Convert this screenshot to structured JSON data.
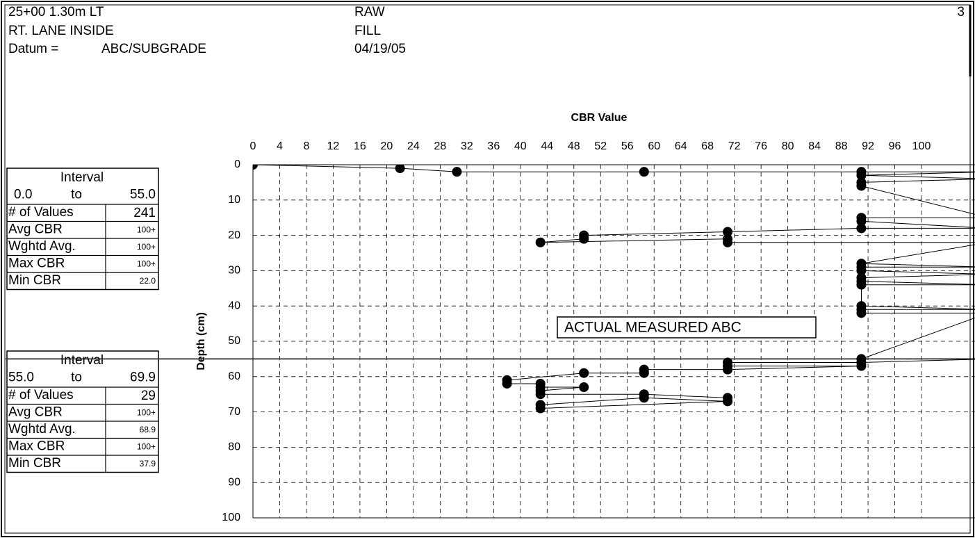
{
  "header": {
    "left": [
      "25+00 1.30m LT",
      "RT. LANE INSIDE"
    ],
    "datum_label": "Datum =",
    "datum_value": "ABC/SUBGRADE",
    "right": [
      "RAW",
      "FILL",
      "04/19/05"
    ],
    "page": "3"
  },
  "tables": [
    {
      "title": "Interval",
      "from": "0.0",
      "to": "to",
      "until": "55.0",
      "rows": [
        [
          "# of Values",
          "241"
        ],
        [
          "Avg CBR",
          "100+"
        ],
        [
          "Wghtd Avg.",
          "100+"
        ],
        [
          "Max CBR",
          "100+"
        ],
        [
          "Min CBR",
          "22.0"
        ]
      ]
    },
    {
      "title": "Interval",
      "from": "55.0",
      "to": "to",
      "until": "69.9",
      "rows": [
        [
          "# of Values",
          "29"
        ],
        [
          "Avg CBR",
          "100+"
        ],
        [
          "Wghtd Avg.",
          "68.9"
        ],
        [
          "Max CBR",
          "100+"
        ],
        [
          "Min CBR",
          "37.9"
        ]
      ]
    }
  ],
  "chart_data": {
    "type": "line",
    "x_label": "CBR Value",
    "y_label": "Depth (cm)",
    "annotation": "ACTUAL MEASURED ABC",
    "boundary": 55,
    "color": "#000000",
    "grid": true,
    "y_inverted": true,
    "xlim": [
      0,
      108
    ],
    "ylim": [
      0,
      100
    ],
    "xticks": [
      0,
      4,
      8,
      12,
      16,
      20,
      24,
      28,
      32,
      36,
      40,
      44,
      48,
      52,
      56,
      60,
      64,
      68,
      72,
      76,
      80,
      84,
      88,
      92,
      96,
      100
    ],
    "yticks": [
      0,
      10,
      20,
      30,
      40,
      50,
      60,
      70,
      80,
      90,
      100
    ],
    "x": [
      0,
      22,
      30.5,
      58.5,
      91,
      110,
      91,
      110,
      91,
      91,
      110,
      91,
      91,
      110,
      91,
      71,
      49.5,
      49.5,
      43,
      71,
      71,
      110,
      91,
      110,
      91,
      91,
      110,
      91,
      91,
      110,
      91,
      91,
      110,
      91,
      91,
      110,
      91,
      110,
      91,
      71,
      71,
      91,
      71,
      58.5,
      58.5,
      49.5,
      38,
      38,
      43,
      43,
      49.5,
      43,
      43,
      58.5,
      71,
      71,
      58.5,
      43,
      43,
      71
    ],
    "values": [
      0,
      1,
      2,
      2,
      2,
      2,
      3,
      4,
      5,
      6,
      15,
      15,
      16,
      18,
      18,
      19,
      20,
      21,
      22,
      21,
      22,
      22,
      28,
      29,
      29,
      30,
      31,
      32,
      33,
      34,
      34,
      40,
      41,
      41,
      42,
      42,
      55,
      55,
      56,
      56,
      57,
      57,
      58,
      58,
      59,
      59,
      61,
      62,
      62,
      63,
      63,
      64,
      65,
      65,
      66,
      67,
      66,
      68,
      69,
      67
    ]
  }
}
